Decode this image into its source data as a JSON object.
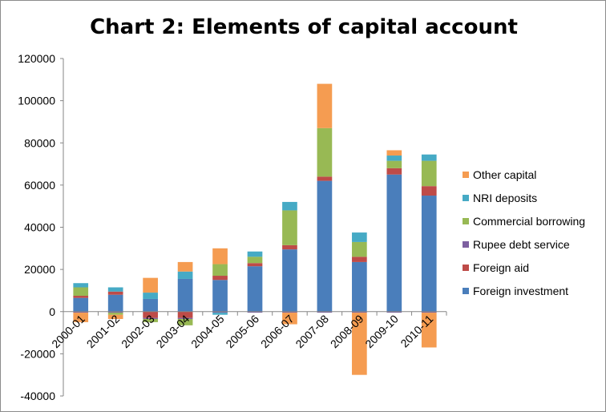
{
  "chart_data": {
    "type": "bar",
    "stacked": true,
    "title": "Chart 2: Elements of capital account",
    "xlabel": "",
    "ylabel": "",
    "ylim": [
      -40000,
      120000
    ],
    "yticks": [
      -40000,
      -20000,
      0,
      20000,
      40000,
      60000,
      80000,
      100000,
      120000
    ],
    "grid": false,
    "legend_position": "right",
    "categories": [
      "2000-01",
      "2001-02",
      "2002-03",
      "2003-04",
      "2004-05",
      "2005-06",
      "2006-07",
      "2007-08",
      "2008-09",
      "2009-10",
      "2010-11"
    ],
    "series": [
      {
        "name": "Foreign investment",
        "color": "#4a7ebb",
        "values": [
          6500,
          8000,
          6000,
          15500,
          15000,
          21500,
          29500,
          62000,
          23500,
          65000,
          55000
        ]
      },
      {
        "name": "Foreign aid",
        "color": "#be4b48",
        "values": [
          1000,
          1500,
          -3000,
          -3000,
          2000,
          1500,
          2000,
          2000,
          2500,
          3000,
          4500
        ]
      },
      {
        "name": "Rupee debt service",
        "color": "#7d60a0",
        "values": [
          -500,
          -500,
          -500,
          -500,
          -500,
          -500,
          -500,
          -500,
          -500,
          -500,
          -500
        ]
      },
      {
        "name": "Commercial borrowing",
        "color": "#98b954",
        "values": [
          4000,
          -1000,
          -1500,
          -3000,
          5500,
          3000,
          16500,
          23000,
          7000,
          3500,
          12000
        ]
      },
      {
        "name": "NRI deposits",
        "color": "#46aac5",
        "values": [
          2000,
          2000,
          3000,
          3500,
          -1000,
          2500,
          4000,
          0,
          4500,
          2500,
          3000
        ]
      },
      {
        "name": "Other capital",
        "color": "#f59c51",
        "values": [
          -4500,
          -2000,
          7000,
          4500,
          7500,
          0,
          -5500,
          21000,
          -29500,
          2500,
          -16500
        ]
      }
    ]
  }
}
